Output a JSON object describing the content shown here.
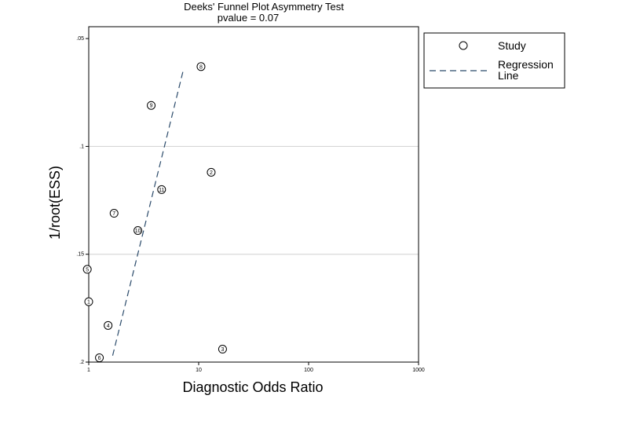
{
  "chart_data": {
    "type": "scatter",
    "title": "Deeks' Funnel Plot Asymmetry Test",
    "subtitle": "pvalue  =   0.07",
    "xlabel": "Diagnostic Odds Ratio",
    "ylabel": "1/root(ESS)",
    "x_scale": "log",
    "xlim": [
      1,
      1000
    ],
    "ylim": [
      0.2,
      0.05
    ],
    "y_inverted": true,
    "x_ticks": [
      {
        "value": 1,
        "label": "1"
      },
      {
        "value": 10,
        "label": "10"
      },
      {
        "value": 100,
        "label": "100"
      },
      {
        "value": 1000,
        "label": "1000"
      }
    ],
    "y_ticks": [
      {
        "value": 0.05,
        "label": ".05"
      },
      {
        "value": 0.1,
        "label": ".1"
      },
      {
        "value": 0.15,
        "label": ".15"
      },
      {
        "value": 0.2,
        "label": ".2"
      }
    ],
    "grid": "horizontal",
    "gridlines_y": [
      0.1,
      0.15
    ],
    "legend": {
      "placement": "right",
      "entries": [
        {
          "marker": "circle",
          "label": "Study"
        },
        {
          "marker": "dashed-line",
          "label_lines": [
            "Regression",
            "Line"
          ]
        }
      ]
    },
    "series": [
      {
        "name": "Study",
        "points": [
          {
            "label": "1",
            "x": 1.0,
            "y": 0.172
          },
          {
            "label": "2",
            "x": 13.0,
            "y": 0.112
          },
          {
            "label": "3",
            "x": 16.5,
            "y": 0.194
          },
          {
            "label": "4",
            "x": 1.5,
            "y": 0.183
          },
          {
            "label": "5",
            "x": 0.97,
            "y": 0.157
          },
          {
            "label": "6",
            "x": 1.25,
            "y": 0.198
          },
          {
            "label": "7",
            "x": 1.7,
            "y": 0.131
          },
          {
            "label": "8",
            "x": 10.5,
            "y": 0.063
          },
          {
            "label": "9",
            "x": 3.7,
            "y": 0.081
          },
          {
            "label": "10",
            "x": 2.8,
            "y": 0.139
          },
          {
            "label": "11",
            "x": 4.6,
            "y": 0.12
          }
        ]
      },
      {
        "name": "Regression Line",
        "style": "dashed",
        "line": [
          {
            "x": 1.65,
            "y": 0.197
          },
          {
            "x": 7.3,
            "y": 0.064
          }
        ]
      }
    ]
  },
  "colors": {
    "background": "#ffffff",
    "plot_border": "#000000",
    "gridline": "#d0d0d0",
    "regression_line": "#2a4a6a",
    "marker": "#000000"
  }
}
